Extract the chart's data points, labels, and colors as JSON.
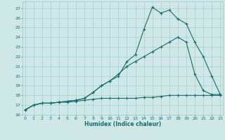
{
  "xlabel": "Humidex (Indice chaleur)",
  "bg_color": "#cde8e6",
  "grid_color": "#9dc8c5",
  "line_color": "#1a6b6b",
  "xlim": [
    -0.3,
    23.3
  ],
  "ylim": [
    16,
    27.7
  ],
  "yticks": [
    16,
    17,
    18,
    19,
    20,
    21,
    22,
    23,
    24,
    25,
    26,
    27
  ],
  "xticks": [
    0,
    1,
    2,
    3,
    4,
    5,
    6,
    7,
    8,
    9,
    10,
    11,
    12,
    13,
    14,
    15,
    16,
    17,
    18,
    19,
    20,
    21,
    22,
    23
  ],
  "line1_x": [
    0,
    1,
    2,
    3,
    4,
    5,
    6,
    7,
    8,
    9,
    10,
    11,
    12,
    13,
    14,
    15,
    16,
    17,
    18,
    19,
    20,
    21,
    22,
    23
  ],
  "line1_y": [
    16.5,
    17.0,
    17.2,
    17.2,
    17.3,
    17.4,
    17.5,
    17.7,
    18.3,
    19.0,
    19.5,
    20.0,
    21.5,
    22.2,
    24.8,
    27.1,
    26.5,
    26.8,
    25.9,
    25.4,
    23.5,
    22.0,
    20.0,
    18.1
  ],
  "line2_x": [
    0,
    1,
    2,
    3,
    4,
    5,
    6,
    7,
    8,
    9,
    10,
    11,
    12,
    13,
    14,
    15,
    16,
    17,
    18,
    19,
    20,
    21,
    22,
    23
  ],
  "line2_y": [
    16.5,
    17.0,
    17.2,
    17.2,
    17.3,
    17.4,
    17.5,
    17.7,
    18.3,
    19.0,
    19.5,
    20.2,
    21.0,
    21.5,
    22.0,
    22.5,
    23.0,
    23.5,
    24.0,
    23.5,
    20.2,
    18.5,
    18.1,
    18.1
  ],
  "line3_x": [
    0,
    1,
    2,
    3,
    4,
    5,
    6,
    7,
    8,
    9,
    10,
    11,
    12,
    13,
    14,
    15,
    16,
    17,
    18,
    19,
    20,
    21,
    22,
    23
  ],
  "line3_y": [
    16.5,
    17.0,
    17.2,
    17.2,
    17.3,
    17.3,
    17.4,
    17.5,
    17.6,
    17.7,
    17.7,
    17.7,
    17.7,
    17.7,
    17.8,
    17.8,
    17.9,
    18.0,
    18.0,
    18.0,
    18.0,
    18.0,
    18.0,
    18.0
  ]
}
